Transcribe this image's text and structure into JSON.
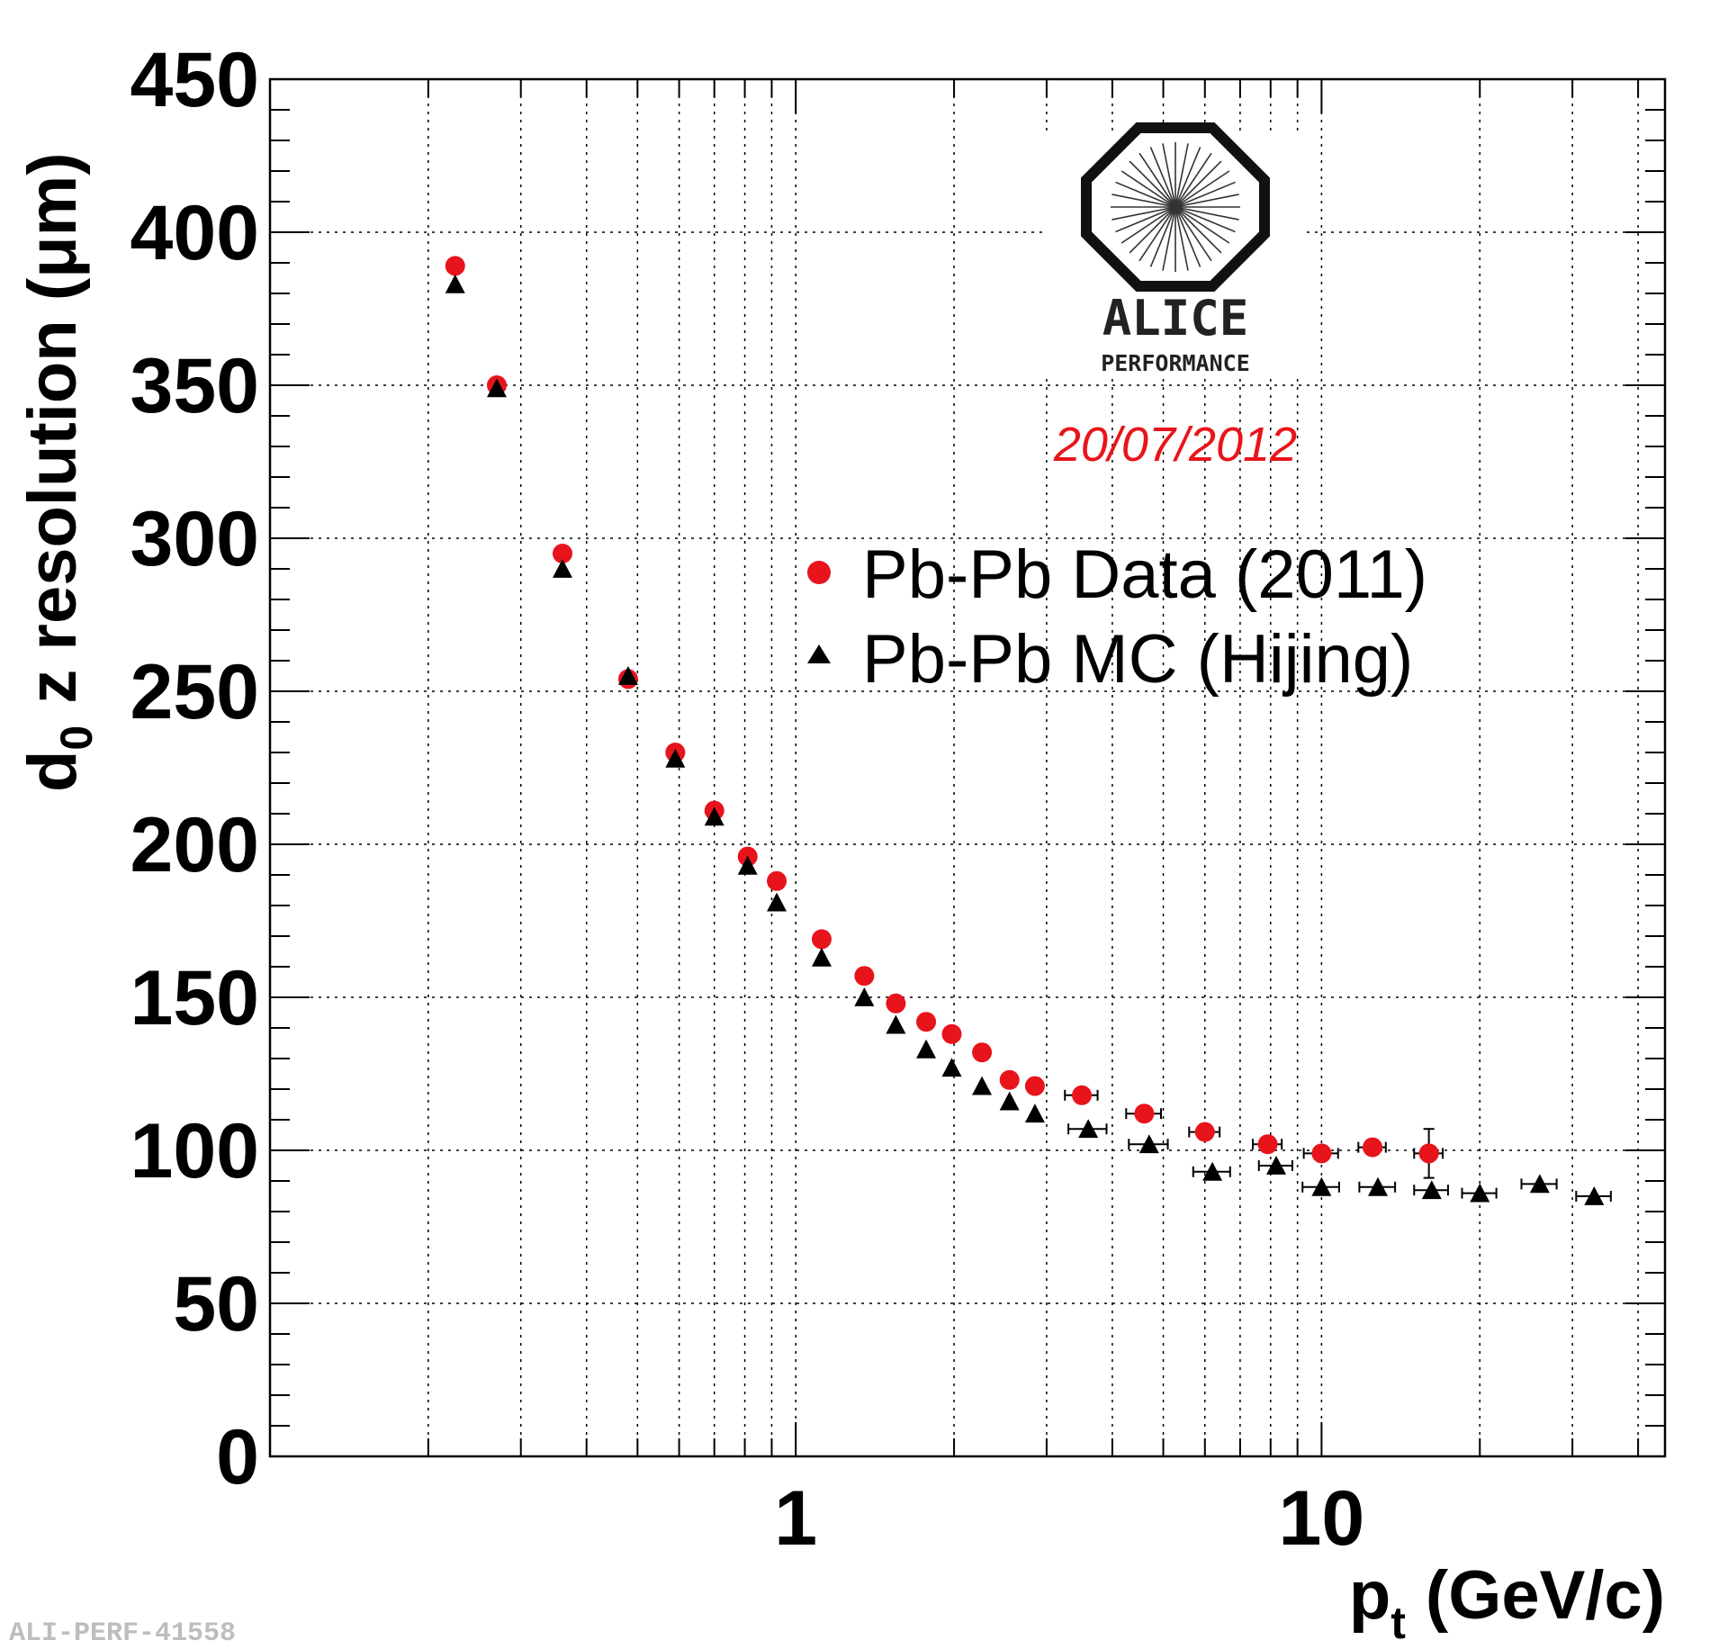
{
  "chart_data": {
    "type": "scatter",
    "xlabel": "p",
    "xlabel_sub": "t",
    "xlabel_unit": "(GeV/c)",
    "ylabel": "d",
    "ylabel_sub": "0",
    "ylabel_rest": "z resolution (μm)",
    "x_scale": "log",
    "xlim": [
      0.1,
      45
    ],
    "ylim": [
      0,
      450
    ],
    "y_ticks": [
      0,
      50,
      100,
      150,
      200,
      250,
      300,
      350,
      400,
      450
    ],
    "x_tick_labels": [
      {
        "value": 1,
        "label": "1"
      },
      {
        "value": 10,
        "label": "10"
      }
    ],
    "grid": true,
    "legend_position": "upper-right",
    "series": [
      {
        "name": "Pb-Pb Data (2011)",
        "marker": "circle",
        "color": "#e8141c",
        "x": [
          0.225,
          0.27,
          0.36,
          0.48,
          0.59,
          0.7,
          0.81,
          0.92,
          1.12,
          1.35,
          1.55,
          1.77,
          1.98,
          2.26,
          2.55,
          2.85,
          3.5,
          4.6,
          6.0,
          7.9,
          10.0,
          12.5,
          16.0
        ],
        "y": [
          389,
          350,
          295,
          254,
          230,
          211,
          196,
          188,
          169,
          157,
          148,
          142,
          138,
          132,
          123,
          121,
          118,
          112,
          106,
          102,
          99,
          101,
          99
        ],
        "xerr": [
          0,
          0,
          0,
          0,
          0,
          0,
          0,
          0,
          0,
          0,
          0,
          0,
          0,
          0,
          0,
          0,
          0.25,
          0.35,
          0.4,
          0.5,
          0.75,
          0.75,
          1.0
        ],
        "yerr": [
          0,
          0,
          0,
          0,
          0,
          0,
          0,
          0,
          0,
          0,
          0,
          0,
          0,
          0,
          0,
          0,
          0,
          0,
          0,
          0,
          0,
          0,
          8
        ]
      },
      {
        "name": "Pb-Pb MC (Hijing)",
        "marker": "triangle",
        "color": "#000000",
        "x": [
          0.225,
          0.27,
          0.36,
          0.48,
          0.59,
          0.7,
          0.81,
          0.92,
          1.12,
          1.35,
          1.55,
          1.77,
          1.98,
          2.26,
          2.55,
          2.85,
          3.6,
          4.7,
          6.2,
          8.2,
          10.0,
          12.8,
          16.2,
          20.0,
          26.0,
          33.0
        ],
        "y": [
          383,
          349,
          290,
          255,
          228,
          209,
          193,
          181,
          163,
          150,
          141,
          133,
          127,
          121,
          116,
          112,
          107,
          102,
          93,
          95,
          88,
          88,
          87,
          86,
          89,
          85
        ],
        "xerr": [
          0,
          0,
          0,
          0,
          0,
          0,
          0,
          0,
          0,
          0,
          0,
          0,
          0,
          0,
          0,
          0,
          0.3,
          0.4,
          0.5,
          0.6,
          0.8,
          1.0,
          1.2,
          1.5,
          2.0,
          2.5
        ],
        "yerr": [
          0,
          0,
          0,
          0,
          0,
          0,
          0,
          0,
          0,
          0,
          0,
          0,
          0,
          0,
          0,
          0,
          0,
          0,
          0,
          0,
          0,
          0,
          0,
          0,
          0,
          0
        ]
      }
    ]
  },
  "logo": {
    "line1": "ALICE",
    "line2": "PERFORMANCE",
    "date": "20/07/2012"
  },
  "watermark": "ALI-PERF-41558"
}
